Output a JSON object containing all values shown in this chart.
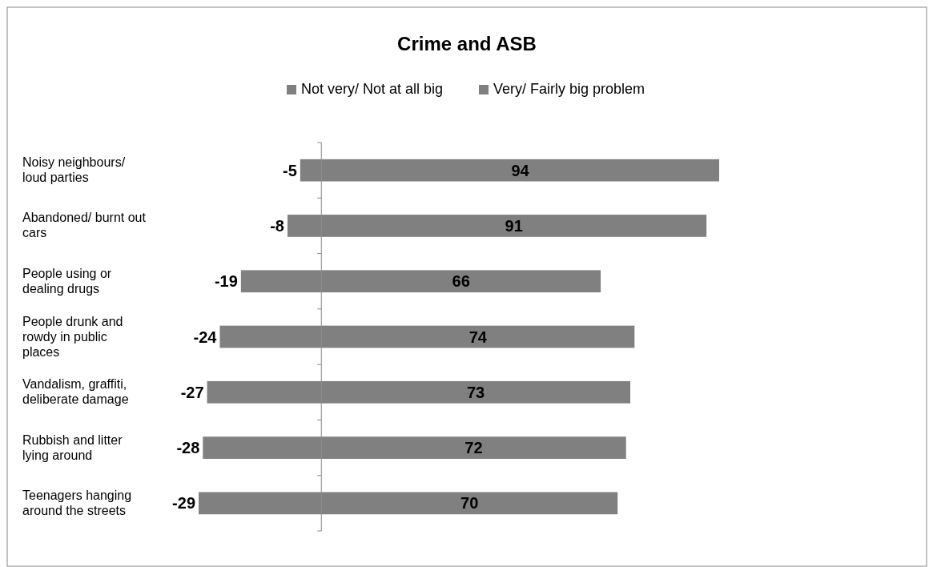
{
  "chart_data": {
    "type": "bar",
    "orientation": "horizontal",
    "stacked": true,
    "title": "Crime and ASB",
    "categories": [
      "Noisy neighbours/ loud parties",
      "Abandoned/ burnt out cars",
      "People using or dealing drugs",
      "People drunk and rowdy in public places",
      "Vandalism, graffiti, deliberate damage",
      "Rubbish and litter lying around",
      "Teenagers hanging around the streets"
    ],
    "series": [
      {
        "name": "Not very/ Not at all big",
        "color": "#808080",
        "values": [
          -5,
          -8,
          -19,
          -24,
          -27,
          -28,
          -29
        ]
      },
      {
        "name": "Very/ Fairly big problem",
        "color": "#808080",
        "values": [
          94,
          91,
          66,
          74,
          73,
          72,
          70
        ]
      }
    ],
    "data_labels": true,
    "legend": "top"
  }
}
